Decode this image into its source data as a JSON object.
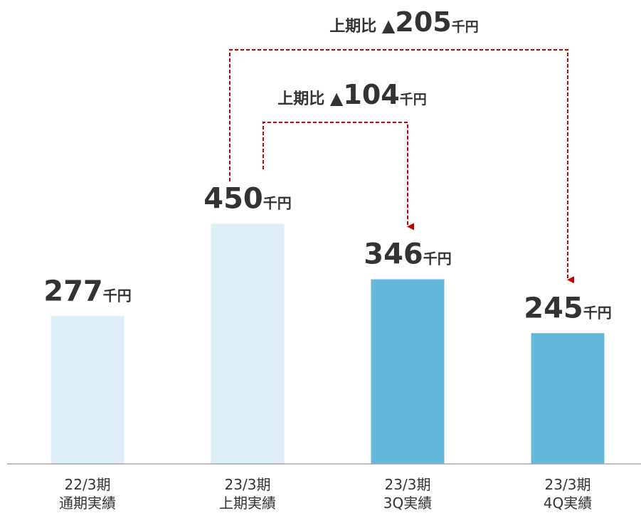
{
  "chart_data": {
    "type": "bar",
    "categories": [
      [
        "22/3期",
        "通期実績"
      ],
      [
        "23/3期",
        "上期実績"
      ],
      [
        "23/3期",
        "3Q実績"
      ],
      [
        "23/3期",
        "4Q実績"
      ]
    ],
    "values": [
      277,
      450,
      346,
      245
    ],
    "unit": "千円",
    "colors": [
      "#DDEEF6",
      "#DDEEF6",
      "#62B7DA",
      "#62B7DA"
    ],
    "ylim": [
      0,
      500
    ],
    "grid": false,
    "annotations": [
      {
        "prefix": "上期比 ",
        "symbol": "▲",
        "value": "104",
        "unit": "千円",
        "from_category": 1,
        "to_category": 2,
        "arrow_color": "#C00000"
      },
      {
        "prefix": "上期比 ",
        "symbol": "▲",
        "value": "205",
        "unit": "千円",
        "from_category": 1,
        "to_category": 3,
        "arrow_color": "#C00000"
      }
    ],
    "baseline_color": "#A6A6A6"
  }
}
